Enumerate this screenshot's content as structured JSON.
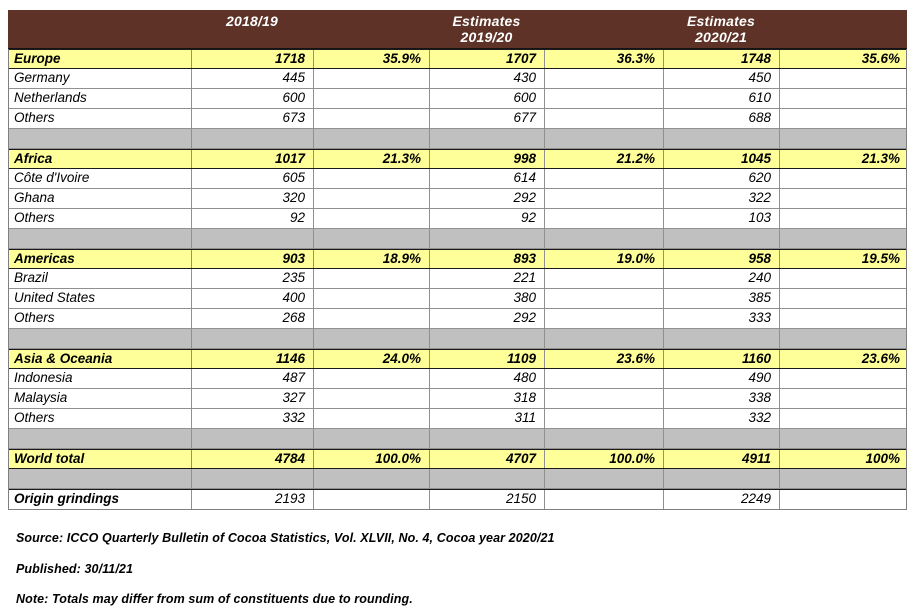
{
  "colors": {
    "header_bg": "#5E3226",
    "section_bg": "#FFFF99",
    "spacer_bg": "#C0C0C0",
    "border_gray": "#909090",
    "border_dark": "#1A1A1A"
  },
  "chart_data": {
    "type": "table",
    "header": {
      "col1": "2018/19",
      "col2_line1": "Estimates",
      "col2_line2": "2019/20",
      "col3_line1": "Estimates",
      "col3_line2": "2020/21"
    },
    "columns_per_period": [
      "grindings",
      "share_percent"
    ],
    "rows": [
      {
        "kind": "section",
        "label": "Europe",
        "cells": [
          "1718",
          "35.9%",
          "1707",
          "36.3%",
          "1748",
          "35.6%"
        ]
      },
      {
        "kind": "detail",
        "label": "Germany",
        "cells": [
          "445",
          "",
          "430",
          "",
          "450",
          ""
        ]
      },
      {
        "kind": "detail",
        "label": "Netherlands",
        "cells": [
          "600",
          "",
          "600",
          "",
          "610",
          ""
        ]
      },
      {
        "kind": "detail",
        "label": "Others",
        "cells": [
          "673",
          "",
          "677",
          "",
          "688",
          ""
        ]
      },
      {
        "kind": "spacer",
        "label": "",
        "cells": [
          "",
          "",
          "",
          "",
          "",
          ""
        ]
      },
      {
        "kind": "section",
        "label": "Africa",
        "cells": [
          "1017",
          "21.3%",
          "998",
          "21.2%",
          "1045",
          "21.3%"
        ]
      },
      {
        "kind": "detail",
        "label": "Côte d'Ivoire",
        "cells": [
          "605",
          "",
          "614",
          "",
          "620",
          ""
        ]
      },
      {
        "kind": "detail",
        "label": "Ghana",
        "cells": [
          "320",
          "",
          "292",
          "",
          "322",
          ""
        ]
      },
      {
        "kind": "detail",
        "label": "Others",
        "cells": [
          "92",
          "",
          "92",
          "",
          "103",
          ""
        ]
      },
      {
        "kind": "spacer",
        "label": "",
        "cells": [
          "",
          "",
          "",
          "",
          "",
          ""
        ]
      },
      {
        "kind": "section",
        "label": "Americas",
        "cells": [
          "903",
          "18.9%",
          "893",
          "19.0%",
          "958",
          "19.5%"
        ]
      },
      {
        "kind": "detail",
        "label": "Brazil",
        "cells": [
          "235",
          "",
          "221",
          "",
          "240",
          ""
        ]
      },
      {
        "kind": "detail",
        "label": "United States",
        "cells": [
          "400",
          "",
          "380",
          "",
          "385",
          ""
        ]
      },
      {
        "kind": "detail",
        "label": "Others",
        "cells": [
          "268",
          "",
          "292",
          "",
          "333",
          ""
        ]
      },
      {
        "kind": "spacer",
        "label": "",
        "cells": [
          "",
          "",
          "",
          "",
          "",
          ""
        ]
      },
      {
        "kind": "section",
        "label": "Asia & Oceania",
        "cells": [
          "1146",
          "24.0%",
          "1109",
          "23.6%",
          "1160",
          "23.6%"
        ]
      },
      {
        "kind": "detail",
        "label": "Indonesia",
        "cells": [
          "487",
          "",
          "480",
          "",
          "490",
          ""
        ]
      },
      {
        "kind": "detail",
        "label": "Malaysia",
        "cells": [
          "327",
          "",
          "318",
          "",
          "338",
          ""
        ]
      },
      {
        "kind": "detail",
        "label": "Others",
        "cells": [
          "332",
          "",
          "311",
          "",
          "332",
          ""
        ]
      },
      {
        "kind": "spacer",
        "label": "",
        "cells": [
          "",
          "",
          "",
          "",
          "",
          ""
        ]
      },
      {
        "kind": "section",
        "label": "World total",
        "cells": [
          "4784",
          "100.0%",
          "4707",
          "100.0%",
          "4911",
          "100%"
        ]
      },
      {
        "kind": "spacer",
        "label": "",
        "cells": [
          "",
          "",
          "",
          "",
          "",
          ""
        ]
      },
      {
        "kind": "total",
        "label": "Origin grindings",
        "cells": [
          "2193",
          "",
          "2150",
          "",
          "2249",
          ""
        ]
      }
    ],
    "footnotes": {
      "source": "Source: ICCO Quarterly Bulletin of Cocoa Statistics, Vol. XLVII, No. 4, Cocoa year 2020/21",
      "published": "Published: 30/11/21",
      "note": "Note: Totals may differ from sum of constituents due to rounding."
    }
  }
}
